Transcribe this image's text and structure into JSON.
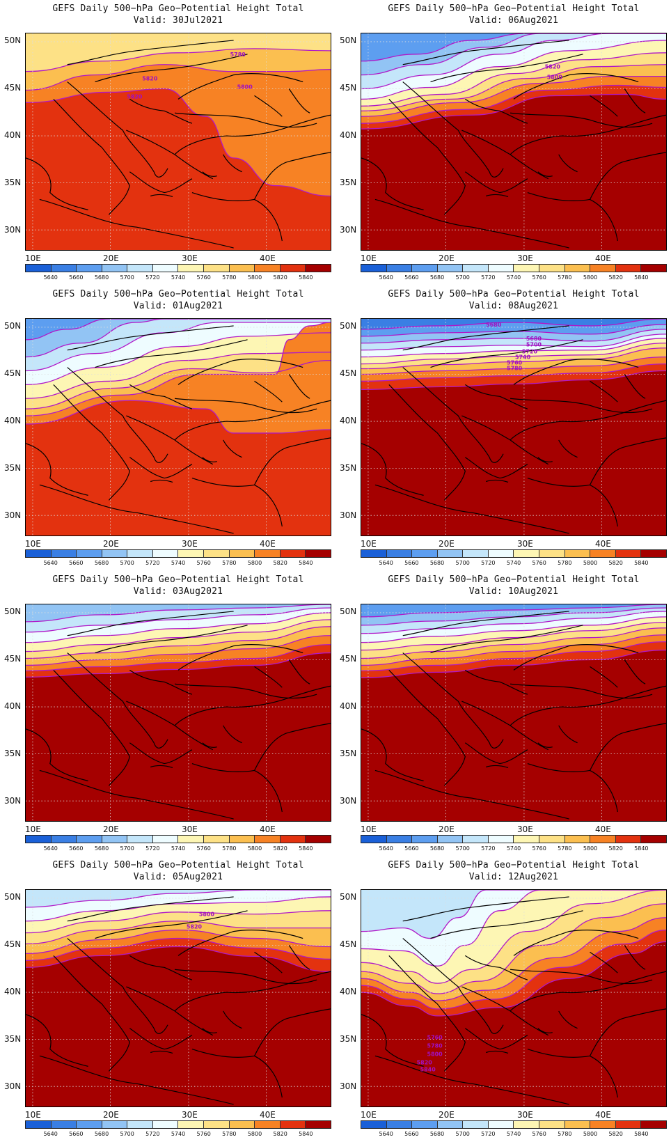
{
  "title_line": "GEFS Daily 500−hPa Geo−Potential Height Total",
  "panels": [
    {
      "valid": "Valid: 30Jul2021",
      "labels": [
        "5780",
        "5820",
        "5800",
        "5820"
      ]
    },
    {
      "valid": "Valid: 06Aug2021",
      "labels": [
        "5820",
        "5800"
      ]
    },
    {
      "valid": "Valid: 01Aug2021",
      "labels": []
    },
    {
      "valid": "Valid: 08Aug2021",
      "labels": [
        "5680",
        "5680",
        "5700",
        "5720",
        "5740",
        "5760",
        "5780"
      ]
    },
    {
      "valid": "Valid: 03Aug2021",
      "labels": []
    },
    {
      "valid": "Valid: 10Aug2021",
      "labels": []
    },
    {
      "valid": "Valid: 05Aug2021",
      "labels": [
        "5800",
        "5820"
      ]
    },
    {
      "valid": "Valid: 12Aug2021",
      "labels": [
        "5760",
        "5780",
        "5800",
        "5820",
        "5840"
      ]
    }
  ],
  "lat_labels": [
    "50N",
    "45N",
    "40N",
    "35N",
    "30N"
  ],
  "lon_labels": [
    "10E",
    "20E",
    "30E",
    "40E"
  ],
  "colorbar": {
    "ticks": [
      "5640",
      "5660",
      "5680",
      "5700",
      "5720",
      "5740",
      "5760",
      "5780",
      "5800",
      "5820",
      "5840"
    ],
    "colors": [
      "#1a60d8",
      "#3a7fe4",
      "#5d9ef0",
      "#92c4f4",
      "#c4e6fa",
      "#eefcff",
      "#fdf6b4",
      "#fde186",
      "#fbbf50",
      "#f78224",
      "#e3320f",
      "#a50000"
    ]
  }
}
